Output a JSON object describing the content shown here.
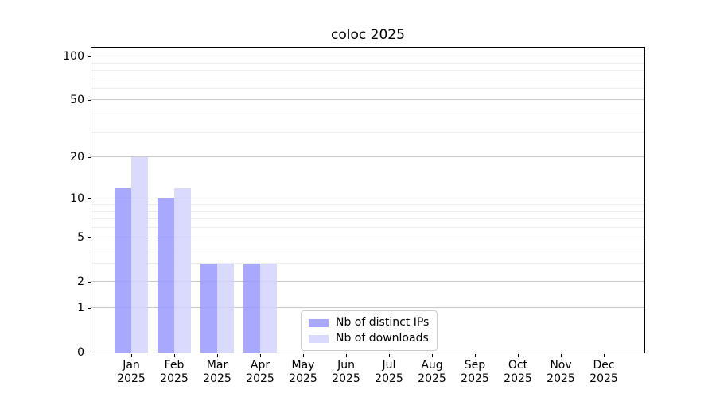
{
  "chart_data": {
    "type": "bar",
    "title": "coloc 2025",
    "categories": [
      "Jan",
      "Feb",
      "Mar",
      "Apr",
      "May",
      "Jun",
      "Jul",
      "Aug",
      "Sep",
      "Oct",
      "Nov",
      "Dec"
    ],
    "x_year_label": "2025",
    "series": [
      {
        "name": "Nb of distinct IPs",
        "color": "#9999ff",
        "values": [
          12,
          10,
          3,
          3,
          0,
          0,
          0,
          0,
          0,
          0,
          0,
          0
        ]
      },
      {
        "name": "Nb of downloads",
        "color": "#d4d4ff",
        "values": [
          20,
          12,
          3,
          3,
          0,
          0,
          0,
          0,
          0,
          0,
          0,
          0
        ]
      }
    ],
    "bar_opacity": 0.85,
    "yscale": "log1p",
    "yticks": [
      0,
      1,
      2,
      5,
      10,
      20,
      50,
      100
    ],
    "minor_yticks": [
      3,
      4,
      6,
      7,
      8,
      9,
      30,
      40,
      60,
      70,
      80,
      90
    ],
    "ylim": [
      0,
      115
    ],
    "grid": true,
    "legend_position": "lower center",
    "colors": {
      "grid_major": "#c9c9c9",
      "grid_minor": "#ededed",
      "spine": "#000000",
      "text": "#000000",
      "background": "#ffffff"
    }
  }
}
